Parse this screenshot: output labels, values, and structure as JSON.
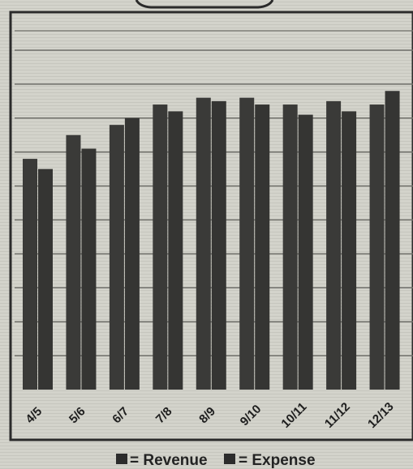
{
  "chart_data": {
    "type": "bar",
    "title": "",
    "xlabel": "",
    "ylabel": "",
    "categories": [
      "4/5",
      "5/6",
      "6/7",
      "7/8",
      "8/9",
      "9/10",
      "10/11",
      "11/12",
      "12/13"
    ],
    "series": [
      {
        "name": "Revenue",
        "values": [
          6.8,
          7.5,
          7.8,
          8.4,
          8.6,
          8.6,
          8.4,
          8.5,
          8.4
        ]
      },
      {
        "name": "Expense",
        "values": [
          6.5,
          7.1,
          8.0,
          8.2,
          8.5,
          8.4,
          8.1,
          8.2,
          8.8
        ]
      }
    ],
    "ylim": [
      0,
      10
    ],
    "grid": true,
    "legend_position": "bottom",
    "colors": {
      "background": "#d3d3cb",
      "revenue": "#3a3a38",
      "expense": "#353533",
      "grid": "#6f6f6a"
    }
  },
  "legend": {
    "revenue_label": "= Revenue",
    "expense_label": "= Expense"
  }
}
